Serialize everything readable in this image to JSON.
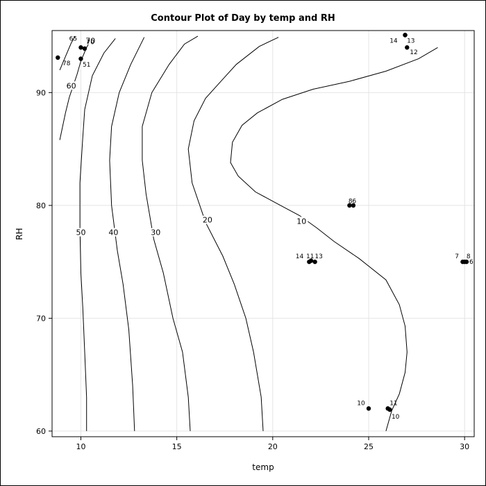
{
  "chart_data": {
    "type": "contour",
    "title": "Contour Plot of Day by temp and RH",
    "xlabel": "temp",
    "ylabel": "RH",
    "xlim": [
      8.5,
      30.5
    ],
    "ylim": [
      59.5,
      95.5
    ],
    "x_ticks": [
      10,
      15,
      20,
      25,
      30
    ],
    "y_ticks": [
      60,
      70,
      80,
      90
    ],
    "grid": true,
    "contours": [
      {
        "label": "60",
        "label_pos": [
          9.5,
          90.5
        ],
        "points": [
          [
            8.9,
            85.8
          ],
          [
            9.2,
            88.2
          ],
          [
            9.4,
            89.6
          ],
          [
            9.8,
            91.6
          ],
          [
            10.0,
            92.8
          ],
          [
            10.3,
            94.0
          ],
          [
            10.5,
            94.6
          ]
        ]
      },
      {
        "label": "70",
        "label_pos": [
          10.5,
          94.5
        ],
        "points": [
          [
            8.9,
            92.0
          ],
          [
            9.2,
            93.2
          ],
          [
            9.5,
            94.4
          ],
          [
            9.7,
            95.0
          ]
        ]
      },
      {
        "label": "50",
        "label_pos": [
          10.0,
          77.5
        ],
        "points": [
          [
            10.3,
            60.0
          ],
          [
            10.3,
            63.0
          ],
          [
            10.2,
            67.0
          ],
          [
            10.1,
            71.0
          ],
          [
            10.0,
            74.0
          ],
          [
            9.95,
            78.0
          ],
          [
            9.95,
            82.0
          ],
          [
            10.1,
            86.0
          ],
          [
            10.2,
            88.5
          ],
          [
            10.6,
            91.5
          ],
          [
            11.2,
            93.5
          ],
          [
            11.8,
            94.8
          ]
        ]
      },
      {
        "label": "40",
        "label_pos": [
          11.7,
          77.5
        ],
        "points": [
          [
            12.8,
            60.0
          ],
          [
            12.7,
            64.0
          ],
          [
            12.5,
            69.0
          ],
          [
            12.2,
            73.0
          ],
          [
            11.9,
            76.0
          ],
          [
            11.6,
            80.0
          ],
          [
            11.5,
            84.0
          ],
          [
            11.6,
            87.0
          ],
          [
            12.0,
            90.0
          ],
          [
            12.6,
            92.5
          ],
          [
            13.3,
            94.9
          ]
        ]
      },
      {
        "label": "30",
        "label_pos": [
          13.9,
          77.5
        ],
        "points": [
          [
            15.7,
            60.0
          ],
          [
            15.6,
            63.0
          ],
          [
            15.3,
            67.0
          ],
          [
            14.8,
            70.0
          ],
          [
            14.3,
            74.0
          ],
          [
            13.8,
            77.0
          ],
          [
            13.4,
            81.0
          ],
          [
            13.2,
            84.0
          ],
          [
            13.2,
            87.0
          ],
          [
            13.7,
            90.0
          ],
          [
            14.6,
            92.5
          ],
          [
            15.4,
            94.3
          ],
          [
            16.1,
            95.0
          ]
        ]
      },
      {
        "label": "20",
        "label_pos": [
          16.6,
          78.6
        ],
        "points": [
          [
            19.5,
            60.0
          ],
          [
            19.4,
            63.0
          ],
          [
            19.0,
            67.0
          ],
          [
            18.6,
            70.0
          ],
          [
            18.0,
            73.0
          ],
          [
            17.4,
            75.5
          ],
          [
            16.5,
            78.5
          ],
          [
            15.8,
            82.0
          ],
          [
            15.6,
            85.0
          ],
          [
            15.9,
            87.5
          ],
          [
            16.5,
            89.5
          ],
          [
            17.3,
            91.0
          ],
          [
            18.1,
            92.5
          ],
          [
            19.3,
            94.1
          ],
          [
            20.3,
            94.9
          ]
        ]
      },
      {
        "label": "10",
        "label_pos": [
          21.5,
          78.5
        ],
        "points": [
          [
            25.9,
            60.0
          ],
          [
            26.2,
            61.8
          ],
          [
            26.6,
            63.3
          ],
          [
            26.9,
            65.2
          ],
          [
            27.0,
            67.0
          ],
          [
            26.9,
            69.3
          ],
          [
            26.6,
            71.2
          ],
          [
            25.9,
            73.4
          ],
          [
            24.5,
            75.3
          ],
          [
            23.2,
            76.8
          ],
          [
            22.3,
            78.0
          ],
          [
            21.4,
            79.1
          ],
          [
            20.3,
            80.1
          ],
          [
            19.1,
            81.2
          ],
          [
            18.2,
            82.6
          ],
          [
            17.8,
            83.8
          ],
          [
            17.9,
            85.6
          ],
          [
            18.4,
            87.1
          ],
          [
            19.2,
            88.2
          ],
          [
            20.5,
            89.4
          ],
          [
            22.1,
            90.3
          ],
          [
            24.0,
            91.0
          ],
          [
            25.9,
            91.9
          ],
          [
            27.6,
            93.0
          ],
          [
            28.6,
            94.0
          ]
        ]
      }
    ],
    "points": [
      {
        "x": 8.8,
        "y": 93.1,
        "label": "78",
        "label_pos": [
          9.25,
          92.6
        ]
      },
      {
        "x": 10.0,
        "y": 94.0,
        "label": "65",
        "label_pos": [
          9.6,
          94.8
        ]
      },
      {
        "x": 10.2,
        "y": 93.9,
        "label": "70",
        "label_pos": [
          10.5,
          94.5
        ]
      },
      {
        "x": 10.0,
        "y": 93.0,
        "label": "51",
        "label_pos": [
          10.3,
          92.5
        ]
      },
      {
        "x": 26.9,
        "y": 95.1,
        "label": "14",
        "label_pos": [
          26.3,
          94.6
        ]
      },
      {
        "x": 26.9,
        "y": 95.1,
        "label": "13",
        "label_pos": [
          27.2,
          94.6
        ]
      },
      {
        "x": 27.0,
        "y": 94.0,
        "label": "12",
        "label_pos": [
          27.35,
          93.6
        ]
      },
      {
        "x": 24.0,
        "y": 80.0,
        "label": "8",
        "label_pos": [
          24.05,
          80.4
        ]
      },
      {
        "x": 24.2,
        "y": 80.0,
        "label": "6",
        "label_pos": [
          24.25,
          80.4
        ]
      },
      {
        "x": 21.9,
        "y": 75.0,
        "label": "14",
        "label_pos": [
          21.4,
          75.5
        ]
      },
      {
        "x": 22.0,
        "y": 75.1,
        "label": "11",
        "label_pos": [
          21.95,
          75.5
        ]
      },
      {
        "x": 22.2,
        "y": 75.0,
        "label": "13",
        "label_pos": [
          22.4,
          75.5
        ]
      },
      {
        "x": 29.9,
        "y": 75.0,
        "label": "7",
        "label_pos": [
          29.6,
          75.5
        ]
      },
      {
        "x": 30.0,
        "y": 75.0,
        "label": "8",
        "label_pos": [
          30.2,
          75.5
        ]
      },
      {
        "x": 30.1,
        "y": 75.0,
        "label": "6",
        "label_pos": [
          30.35,
          75.0
        ]
      },
      {
        "x": 25.0,
        "y": 62.0,
        "label": "10",
        "label_pos": [
          24.6,
          62.5
        ]
      },
      {
        "x": 26.0,
        "y": 62.0,
        "label": "11",
        "label_pos": [
          26.3,
          62.5
        ]
      },
      {
        "x": 26.1,
        "y": 61.9,
        "label": "10",
        "label_pos": [
          26.4,
          61.3
        ]
      }
    ]
  }
}
